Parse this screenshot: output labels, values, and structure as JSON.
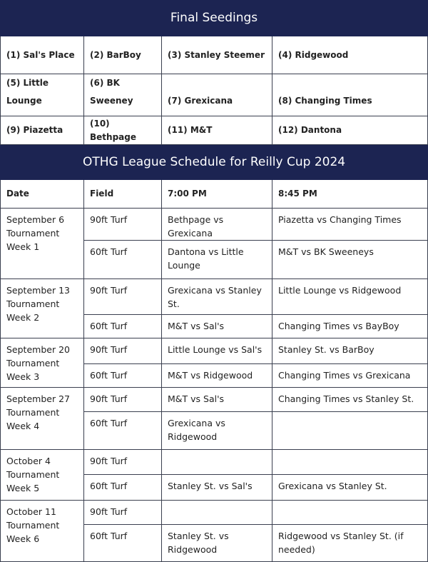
{
  "seedings": {
    "title": "Final Seedings",
    "rows": [
      [
        "(1) Sal's Place",
        "(2) BarBoy",
        "(3) Stanley Steemer",
        "(4) Ridgewood"
      ],
      [
        "(5) Little Lounge",
        "(6) BK Sweeney",
        "(7) Grexicana",
        "(8) Changing Times"
      ],
      [
        "(9) Piazetta",
        "(10) Bethpage",
        "(11) M&T",
        "(12) Dantona"
      ]
    ]
  },
  "schedule": {
    "title": "OTHG League Schedule for Reilly Cup 2024",
    "headers": [
      "Date",
      "Field",
      "7:00 PM",
      "8:45 PM"
    ],
    "weeks": [
      {
        "date": "September 6 Tournament Week 1",
        "games": [
          [
            "90ft Turf",
            "Bethpage vs Grexicana",
            "Piazetta vs Changing Times"
          ],
          [
            "60ft Turf",
            "Dantona vs Little Lounge",
            "M&T vs BK Sweeneys"
          ]
        ]
      },
      {
        "date": "September 13 Tournament Week 2",
        "games": [
          [
            "90ft Turf",
            "Grexicana vs Stanley St.",
            "Little Lounge vs Ridgewood"
          ],
          [
            "60ft Turf",
            "M&T vs Sal's",
            "Changing Times vs BayBoy"
          ]
        ]
      },
      {
        "date": "September 20 Tournament Week 3",
        "games": [
          [
            "90ft Turf",
            "Little Lounge vs Sal's",
            "Stanley St. vs BarBoy"
          ],
          [
            "60ft Turf",
            "M&T vs Ridgewood",
            "Changing Times vs Grexicana"
          ]
        ]
      },
      {
        "date": "September 27 Tournament Week 4",
        "games": [
          [
            "90ft Turf",
            "M&T vs Sal's",
            "Changing Times vs Stanley St."
          ],
          [
            "60ft Turf",
            "Grexicana vs Ridgewood",
            ""
          ]
        ]
      },
      {
        "date": "October 4 Tournament Week 5",
        "games": [
          [
            "90ft Turf",
            "",
            ""
          ],
          [
            "60ft Turf",
            "Stanley St. vs Sal's",
            "Grexicana vs Stanley St."
          ]
        ]
      },
      {
        "date": "October 11 Tournament Week 6",
        "games": [
          [
            "90ft Turf",
            "",
            ""
          ],
          [
            "60ft Turf",
            "Stanley St. vs Ridgewood",
            "Ridgewood vs Stanley St. (if needed)"
          ]
        ]
      }
    ]
  }
}
